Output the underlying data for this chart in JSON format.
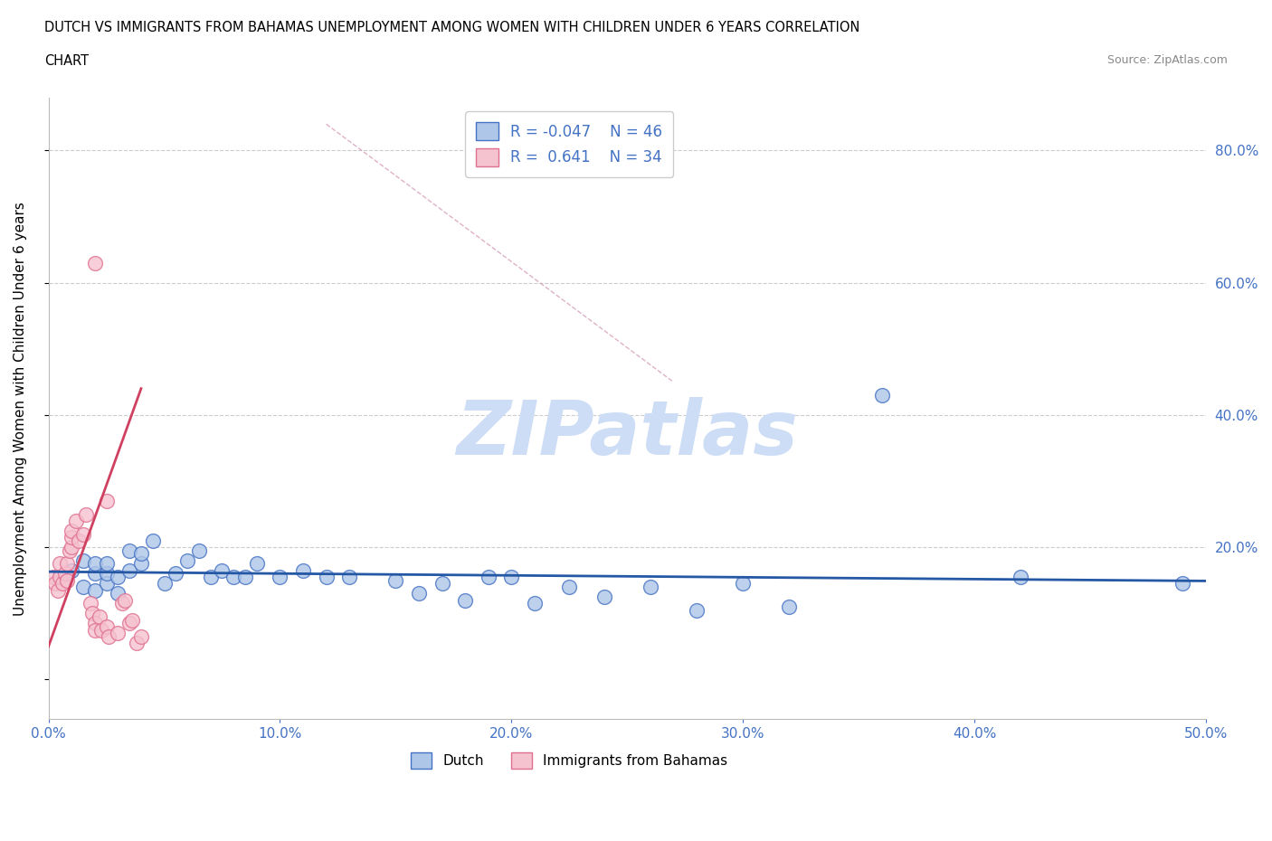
{
  "title_line1": "DUTCH VS IMMIGRANTS FROM BAHAMAS UNEMPLOYMENT AMONG WOMEN WITH CHILDREN UNDER 6 YEARS CORRELATION",
  "title_line2": "CHART",
  "source_text": "Source: ZipAtlas.com",
  "ylabel": "Unemployment Among Women with Children Under 6 years",
  "xlim": [
    0.0,
    0.5
  ],
  "ylim": [
    -0.06,
    0.88
  ],
  "dutch_R": -0.047,
  "dutch_N": 46,
  "bahamas_R": 0.641,
  "bahamas_N": 34,
  "dutch_color": "#aec6e8",
  "dutch_edge_color": "#4472c4",
  "bahamas_color": "#f5c2d0",
  "bahamas_edge_color": "#e07090",
  "trend_dutch_color": "#2457a4",
  "trend_bahamas_color": "#d04060",
  "grid_color": "#cccccc",
  "watermark_color": "#ccddf5",
  "dutch_points": [
    [
      0.005,
      0.155
    ],
    [
      0.01,
      0.165
    ],
    [
      0.015,
      0.14
    ],
    [
      0.015,
      0.18
    ],
    [
      0.02,
      0.135
    ],
    [
      0.02,
      0.16
    ],
    [
      0.02,
      0.175
    ],
    [
      0.025,
      0.145
    ],
    [
      0.025,
      0.16
    ],
    [
      0.025,
      0.175
    ],
    [
      0.03,
      0.13
    ],
    [
      0.03,
      0.155
    ],
    [
      0.035,
      0.165
    ],
    [
      0.035,
      0.195
    ],
    [
      0.04,
      0.175
    ],
    [
      0.04,
      0.19
    ],
    [
      0.045,
      0.21
    ],
    [
      0.05,
      0.145
    ],
    [
      0.055,
      0.16
    ],
    [
      0.06,
      0.18
    ],
    [
      0.065,
      0.195
    ],
    [
      0.07,
      0.155
    ],
    [
      0.075,
      0.165
    ],
    [
      0.08,
      0.155
    ],
    [
      0.085,
      0.155
    ],
    [
      0.09,
      0.175
    ],
    [
      0.1,
      0.155
    ],
    [
      0.11,
      0.165
    ],
    [
      0.12,
      0.155
    ],
    [
      0.13,
      0.155
    ],
    [
      0.15,
      0.15
    ],
    [
      0.16,
      0.13
    ],
    [
      0.17,
      0.145
    ],
    [
      0.18,
      0.12
    ],
    [
      0.19,
      0.155
    ],
    [
      0.2,
      0.155
    ],
    [
      0.21,
      0.115
    ],
    [
      0.225,
      0.14
    ],
    [
      0.24,
      0.125
    ],
    [
      0.26,
      0.14
    ],
    [
      0.28,
      0.105
    ],
    [
      0.3,
      0.145
    ],
    [
      0.32,
      0.11
    ],
    [
      0.36,
      0.43
    ],
    [
      0.42,
      0.155
    ],
    [
      0.49,
      0.145
    ]
  ],
  "bahamas_points": [
    [
      0.002,
      0.155
    ],
    [
      0.003,
      0.145
    ],
    [
      0.004,
      0.135
    ],
    [
      0.005,
      0.155
    ],
    [
      0.005,
      0.175
    ],
    [
      0.006,
      0.145
    ],
    [
      0.007,
      0.16
    ],
    [
      0.008,
      0.15
    ],
    [
      0.008,
      0.175
    ],
    [
      0.009,
      0.195
    ],
    [
      0.01,
      0.2
    ],
    [
      0.01,
      0.215
    ],
    [
      0.01,
      0.225
    ],
    [
      0.012,
      0.24
    ],
    [
      0.013,
      0.21
    ],
    [
      0.015,
      0.22
    ],
    [
      0.016,
      0.25
    ],
    [
      0.018,
      0.115
    ],
    [
      0.019,
      0.1
    ],
    [
      0.02,
      0.085
    ],
    [
      0.02,
      0.075
    ],
    [
      0.022,
      0.095
    ],
    [
      0.023,
      0.075
    ],
    [
      0.025,
      0.08
    ],
    [
      0.026,
      0.065
    ],
    [
      0.03,
      0.07
    ],
    [
      0.032,
      0.115
    ],
    [
      0.033,
      0.12
    ],
    [
      0.035,
      0.085
    ],
    [
      0.036,
      0.09
    ],
    [
      0.038,
      0.055
    ],
    [
      0.04,
      0.065
    ],
    [
      0.02,
      0.63
    ],
    [
      0.025,
      0.27
    ]
  ],
  "diag_line_x": [
    0.12,
    0.27
  ],
  "diag_line_y": [
    0.84,
    0.45
  ],
  "dutch_trend_x": [
    0.0,
    0.5
  ],
  "dutch_trend_y": [
    0.163,
    0.149
  ],
  "bahamas_trend_x": [
    0.0,
    0.04
  ],
  "bahamas_trend_y": [
    0.05,
    0.44
  ],
  "yticks_right": [
    0.2,
    0.4,
    0.6,
    0.8
  ],
  "xtick_labels": [
    "0.0%",
    "10.0%",
    "20.0%",
    "30.0%",
    "40.0%",
    "50.0%"
  ]
}
